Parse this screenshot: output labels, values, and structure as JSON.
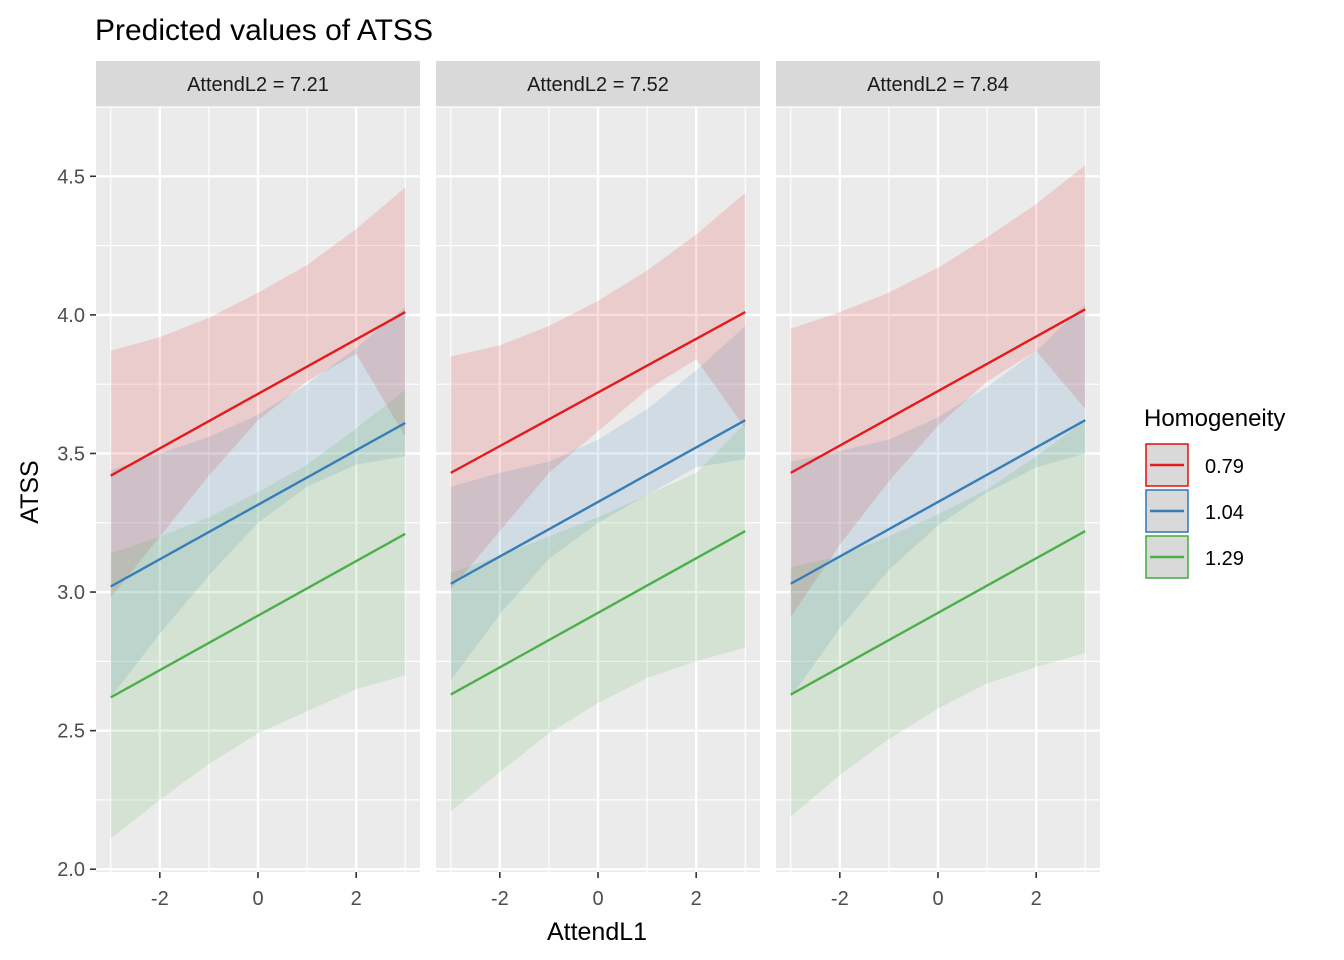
{
  "chart_data": {
    "type": "line",
    "title": "Predicted values of ATSS",
    "xlabel": "AttendL1",
    "ylabel": "ATSS",
    "xlim": [
      -3.3,
      3.3
    ],
    "ylim": [
      1.99,
      4.75
    ],
    "x_ticks": [
      -2,
      0,
      2
    ],
    "x_tick_labels": [
      "-2",
      "0",
      "2"
    ],
    "y_ticks": [
      2.0,
      2.5,
      3.0,
      3.5,
      4.0,
      4.5
    ],
    "y_tick_labels": [
      "2.0",
      "2.5",
      "3.0",
      "3.5",
      "4.0",
      "4.5"
    ],
    "grid": true,
    "legend": {
      "title": "Homogeneity",
      "position": "right",
      "entries": [
        "0.79",
        "1.04",
        "1.29"
      ]
    },
    "colors": {
      "0.79": "#E41A1C",
      "1.04": "#377EB8",
      "1.29": "#4DAF4A"
    },
    "x": [
      -3,
      -2,
      -1,
      0,
      1,
      2,
      3
    ],
    "panels": [
      {
        "label": "AttendL2 = 7.21",
        "series": [
          {
            "group": "0.79",
            "line": [
              3.42,
              4.01
            ],
            "lower": [
              2.98,
              3.2,
              3.42,
              3.62,
              3.76,
              3.86,
              3.56
            ],
            "upper": [
              3.87,
              3.92,
              3.99,
              4.08,
              4.18,
              4.31,
              4.46
            ]
          },
          {
            "group": "1.04",
            "line": [
              3.02,
              3.61
            ],
            "lower": [
              2.62,
              2.85,
              3.06,
              3.25,
              3.38,
              3.46,
              3.49
            ],
            "upper": [
              3.44,
              3.5,
              3.56,
              3.64,
              3.75,
              3.88,
              4.03
            ]
          },
          {
            "group": "1.29",
            "line": [
              2.62,
              3.21
            ],
            "lower": [
              2.11,
              2.25,
              2.38,
              2.49,
              2.57,
              2.65,
              2.7
            ],
            "upper": [
              3.14,
              3.2,
              3.27,
              3.36,
              3.46,
              3.59,
              3.73
            ]
          }
        ]
      },
      {
        "label": "AttendL2 = 7.52",
        "series": [
          {
            "group": "0.79",
            "line": [
              3.43,
              4.01
            ],
            "lower": [
              3.01,
              3.22,
              3.43,
              3.58,
              3.73,
              3.84,
              3.59
            ],
            "upper": [
              3.85,
              3.89,
              3.96,
              4.05,
              4.16,
              4.29,
              4.44
            ]
          },
          {
            "group": "1.04",
            "line": [
              3.03,
              3.62
            ],
            "lower": [
              2.68,
              2.92,
              3.12,
              3.25,
              3.35,
              3.45,
              3.48
            ],
            "upper": [
              3.38,
              3.43,
              3.47,
              3.55,
              3.66,
              3.8,
              3.96
            ]
          },
          {
            "group": "1.29",
            "line": [
              2.63,
              3.22
            ],
            "lower": [
              2.21,
              2.35,
              2.49,
              2.6,
              2.69,
              2.75,
              2.8
            ],
            "upper": [
              3.07,
              3.13,
              3.2,
              3.27,
              3.35,
              3.43,
              3.61
            ]
          }
        ]
      },
      {
        "label": "AttendL2 = 7.84",
        "series": [
          {
            "group": "0.79",
            "line": [
              3.43,
              4.02
            ],
            "lower": [
              2.91,
              3.17,
              3.4,
              3.6,
              3.76,
              3.87,
              3.66
            ],
            "upper": [
              3.95,
              4.01,
              4.08,
              4.17,
              4.28,
              4.4,
              4.54
            ]
          },
          {
            "group": "1.04",
            "line": [
              3.03,
              3.62
            ],
            "lower": [
              2.62,
              2.87,
              3.08,
              3.24,
              3.36,
              3.45,
              3.5
            ],
            "upper": [
              3.47,
              3.51,
              3.55,
              3.63,
              3.74,
              3.87,
              4.04
            ]
          },
          {
            "group": "1.29",
            "line": [
              2.63,
              3.22
            ],
            "lower": [
              2.19,
              2.34,
              2.47,
              2.58,
              2.67,
              2.73,
              2.78
            ],
            "upper": [
              3.09,
              3.13,
              3.2,
              3.28,
              3.37,
              3.49,
              3.62
            ]
          }
        ]
      }
    ]
  }
}
